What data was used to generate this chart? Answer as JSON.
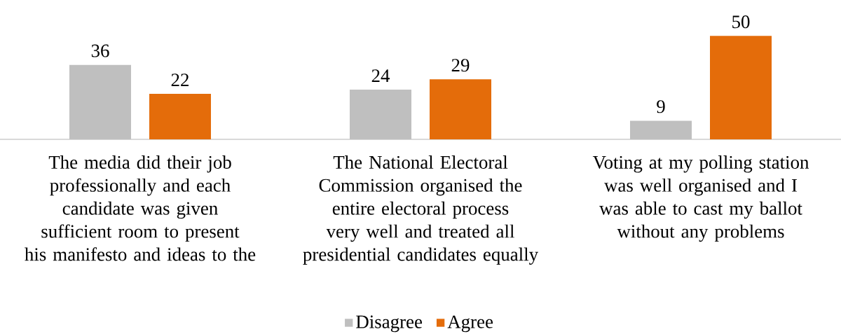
{
  "chart_data": {
    "type": "bar",
    "categories": [
      "The media did their job professionally and each candidate was given sufficient room to present his manifesto and ideas to the",
      "The National Electoral Commission organised the entire electoral process very well and treated all presidential candidates equally",
      "Voting at my polling station was well organised and I was able to cast my ballot without any problems"
    ],
    "series": [
      {
        "name": "Disagree",
        "color": "#bfbfbf",
        "values": [
          36,
          24,
          9
        ]
      },
      {
        "name": "Agree",
        "color": "#e46c0a",
        "values": [
          22,
          29,
          50
        ]
      }
    ],
    "data_labels": true,
    "legend": "bottom",
    "tick_labels": "x"
  }
}
